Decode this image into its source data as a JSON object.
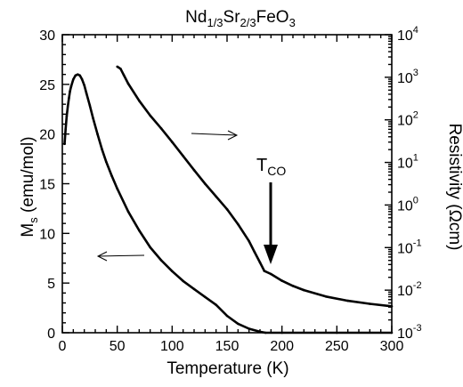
{
  "chart_data": {
    "type": "line",
    "title": {
      "base": "Nd",
      "sub1": "1/3",
      "mid": "Sr",
      "sub2": "2/3",
      "tail": "FeO",
      "sub3": "3"
    },
    "xlabel": "Temperature (K)",
    "ylabel_left": {
      "base": "M",
      "sub": "s",
      "tail": " (emu/mol)"
    },
    "ylabel_right": "Resistivity (Ωcm)",
    "xlim": [
      0,
      300
    ],
    "ylim_left": [
      0,
      30
    ],
    "ylim_right_log10": [
      -3,
      4
    ],
    "right_scale": "log",
    "grid": false,
    "x_ticks": [
      "0",
      "50",
      "100",
      "150",
      "200",
      "250",
      "300"
    ],
    "y_left_ticks": [
      "0",
      "5",
      "10",
      "15",
      "20",
      "25",
      "30"
    ],
    "y_right_ticks": [
      {
        "exp": -3,
        "base": "10",
        "sup": "-3"
      },
      {
        "exp": -2,
        "base": "10",
        "sup": "-2"
      },
      {
        "exp": -1,
        "base": "10",
        "sup": "-1"
      },
      {
        "exp": 0,
        "base": "10",
        "sup": "0"
      },
      {
        "exp": 1,
        "base": "10",
        "sup": "1"
      },
      {
        "exp": 2,
        "base": "10",
        "sup": "2"
      },
      {
        "exp": 3,
        "base": "10",
        "sup": "3"
      },
      {
        "exp": 4,
        "base": "10",
        "sup": "4"
      }
    ],
    "annotation": {
      "base": "T",
      "sub": "CO"
    },
    "series": [
      {
        "axis": "left",
        "values": [
          [
            2,
            19
          ],
          [
            3,
            20.5
          ],
          [
            4,
            21.8
          ],
          [
            5,
            22.8
          ],
          [
            6,
            23.6
          ],
          [
            7,
            24.3
          ],
          [
            8,
            24.8
          ],
          [
            10,
            25.5
          ],
          [
            12,
            25.9
          ],
          [
            14,
            26
          ],
          [
            16,
            25.9
          ],
          [
            18,
            25.5
          ],
          [
            20,
            24.9
          ],
          [
            22,
            24.1
          ],
          [
            25,
            22.9
          ],
          [
            28,
            21.6
          ],
          [
            32,
            20
          ],
          [
            36,
            18.5
          ],
          [
            40,
            17.2
          ],
          [
            45,
            15.8
          ],
          [
            50,
            14.5
          ],
          [
            60,
            12.2
          ],
          [
            70,
            10.3
          ],
          [
            80,
            8.6
          ],
          [
            90,
            7.3
          ],
          [
            100,
            6.2
          ],
          [
            110,
            5.2
          ],
          [
            120,
            4.4
          ],
          [
            130,
            3.6
          ],
          [
            140,
            2.8
          ],
          [
            150,
            1.7
          ],
          [
            160,
            0.9
          ],
          [
            170,
            0.4
          ],
          [
            180,
            0.1
          ],
          [
            185,
            0
          ],
          [
            200,
            0
          ],
          [
            250,
            0
          ],
          [
            300,
            0
          ]
        ]
      },
      {
        "axis": "right",
        "values": [
          [
            50,
            3.25
          ],
          [
            53,
            3.2
          ],
          [
            56,
            3.05
          ],
          [
            60,
            2.85
          ],
          [
            70,
            2.45
          ],
          [
            80,
            2.1
          ],
          [
            90,
            1.8
          ],
          [
            100,
            1.48
          ],
          [
            110,
            1.15
          ],
          [
            120,
            0.82
          ],
          [
            130,
            0.5
          ],
          [
            140,
            0.2
          ],
          [
            150,
            -0.1
          ],
          [
            160,
            -0.45
          ],
          [
            170,
            -0.85
          ],
          [
            175,
            -1.1
          ],
          [
            180,
            -1.35
          ],
          [
            184,
            -1.55
          ],
          [
            190,
            -1.62
          ],
          [
            200,
            -1.78
          ],
          [
            210,
            -1.9
          ],
          [
            220,
            -2.0
          ],
          [
            240,
            -2.15
          ],
          [
            260,
            -2.25
          ],
          [
            280,
            -2.32
          ],
          [
            300,
            -2.38
          ]
        ]
      }
    ]
  }
}
